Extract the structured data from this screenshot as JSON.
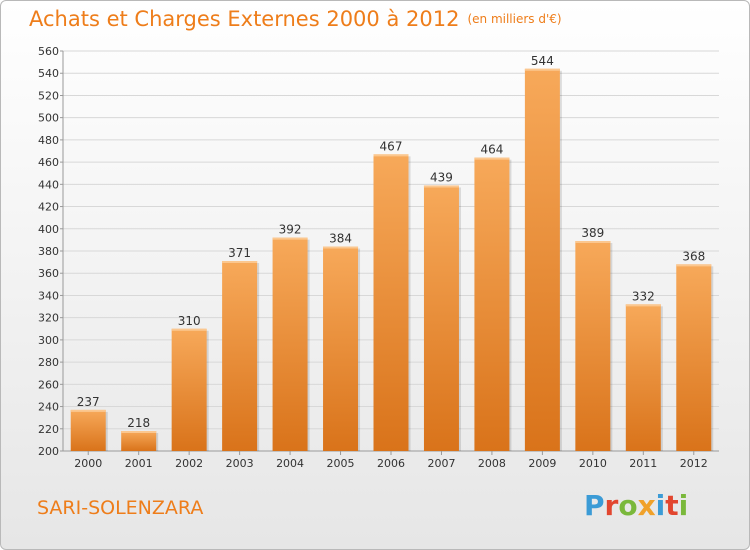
{
  "title": "Achats et Charges Externes 2000 à 2012",
  "subtitle": "(en milliers d'€)",
  "location": "SARI-SOLENZARA",
  "brand": {
    "letters": [
      "P",
      "r",
      "o",
      "x",
      "i",
      "t",
      "i"
    ],
    "colors": [
      "#3b9bd6",
      "#e2462f",
      "#7ab83b",
      "#f0a12a",
      "#3b9bd6",
      "#e2462f",
      "#7ab83b"
    ]
  },
  "colors": {
    "accent": "#ee7d1a",
    "bar_light": "#f7a95a",
    "bar_dark": "#d9731a",
    "grid": "#d8d8d8",
    "axis_text": "#333333"
  },
  "chart_data": {
    "type": "bar",
    "categories": [
      "2000",
      "2001",
      "2002",
      "2003",
      "2004",
      "2005",
      "2006",
      "2007",
      "2008",
      "2009",
      "2010",
      "2011",
      "2012"
    ],
    "values": [
      237,
      218,
      310,
      371,
      392,
      384,
      467,
      439,
      464,
      544,
      389,
      332,
      368
    ],
    "ylim": [
      200,
      560
    ],
    "yticks": [
      200,
      220,
      240,
      260,
      280,
      300,
      320,
      340,
      360,
      380,
      400,
      420,
      440,
      460,
      480,
      500,
      520,
      540,
      560
    ],
    "grid": true,
    "xlabel": "",
    "ylabel": ""
  }
}
